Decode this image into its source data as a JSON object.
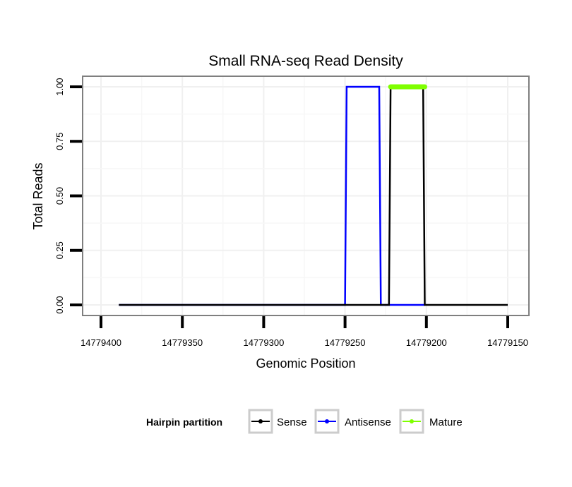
{
  "chart_data": {
    "type": "line",
    "title": "Small RNA-seq Read Density",
    "xlabel": "Genomic Position",
    "ylabel": "Total Reads",
    "xlim": [
      14779411,
      14779137
    ],
    "x_reversed": true,
    "ylim": [
      -0.05,
      1.05
    ],
    "xticks": [
      14779400,
      14779350,
      14779300,
      14779250,
      14779200,
      14779150
    ],
    "xtick_labels": [
      "14779400",
      "14779350",
      "14779300",
      "14779250",
      "14779200",
      "14779150"
    ],
    "yticks": [
      0,
      0.25,
      0.5,
      0.75,
      1.0
    ],
    "ytick_labels": [
      "0.00",
      "0.25",
      "0.50",
      "0.75",
      "1.00"
    ],
    "grid": true,
    "legend": {
      "title": "Hairpin partition",
      "position": "bottom"
    },
    "series": [
      {
        "name": "Antisense",
        "color": "#0000ff",
        "points": [
          [
            14779389,
            0
          ],
          [
            14779250,
            0
          ],
          [
            14779249,
            1
          ],
          [
            14779229,
            1
          ],
          [
            14779228,
            0
          ],
          [
            14779201,
            0
          ]
        ]
      },
      {
        "name": "Sense",
        "color": "#000000",
        "points": [
          [
            14779389,
            0
          ],
          [
            14779223,
            0
          ],
          [
            14779222,
            1
          ],
          [
            14779202,
            1
          ],
          [
            14779201,
            0
          ],
          [
            14779150,
            0
          ]
        ]
      },
      {
        "name": "Mature",
        "color": "#7fff00",
        "points": [
          [
            14779222,
            1
          ],
          [
            14779201,
            1
          ]
        ]
      }
    ],
    "legend_order": [
      "Sense",
      "Antisense",
      "Mature"
    ]
  }
}
